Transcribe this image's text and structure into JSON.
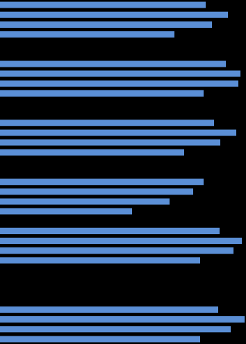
{
  "chart_data": {
    "type": "bar",
    "orientation": "horizontal",
    "categories": [
      null,
      null,
      null,
      null,
      null,
      null,
      null,
      null,
      null,
      null,
      null,
      null,
      null,
      null,
      null,
      null,
      null,
      null,
      null,
      null,
      null,
      null,
      null,
      null,
      null,
      null,
      null,
      null,
      null,
      null,
      null,
      null,
      null,
      null,
      null
    ],
    "values": [
      296,
      328,
      305,
      251,
      null,
      null,
      325,
      346,
      343,
      293,
      null,
      null,
      308,
      340,
      317,
      265,
      null,
      null,
      293,
      278,
      244,
      190,
      null,
      316,
      348,
      336,
      288,
      null,
      null,
      null,
      null,
      314,
      352,
      332,
      288
    ],
    "color": "#5b8fd6",
    "xlim": [
      0,
      354
    ],
    "grid": false,
    "tick_labels": false
  }
}
